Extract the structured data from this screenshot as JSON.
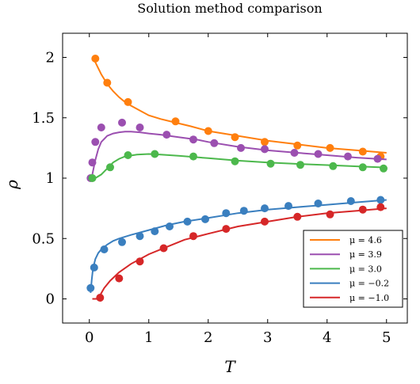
{
  "chart_data": {
    "type": "line",
    "title": "Solution method comparison",
    "xlabel": "T",
    "ylabel": "ρ",
    "xlim": [
      -0.45,
      5.35
    ],
    "ylim": [
      -0.2,
      2.2
    ],
    "xticks": [
      {
        "value": 0,
        "label": "0"
      },
      {
        "value": 1,
        "label": "1"
      },
      {
        "value": 2,
        "label": "2"
      },
      {
        "value": 3,
        "label": "3"
      },
      {
        "value": 4,
        "label": "4"
      },
      {
        "value": 5,
        "label": "5"
      }
    ],
    "yticks": [
      {
        "value": 0,
        "label": "0"
      },
      {
        "value": 0.5,
        "label": "0.5"
      },
      {
        "value": 1,
        "label": "1"
      },
      {
        "value": 1.5,
        "label": "1.5"
      },
      {
        "value": 2,
        "label": "2"
      }
    ],
    "grid": false,
    "legend_position": "bottom-right",
    "series": [
      {
        "name": "μ = 4.6",
        "color": "#ff7f0e",
        "line": {
          "x": [
            0.05,
            0.1,
            0.15,
            0.2,
            0.3,
            0.4,
            0.5,
            0.6,
            0.7,
            0.85,
            1.0,
            1.2,
            1.45,
            1.7,
            2.0,
            2.5,
            3.0,
            3.5,
            4.0,
            4.5,
            5.0
          ],
          "y": [
            2.0,
            1.96,
            1.91,
            1.86,
            1.78,
            1.72,
            1.67,
            1.63,
            1.6,
            1.56,
            1.52,
            1.49,
            1.46,
            1.43,
            1.39,
            1.35,
            1.31,
            1.28,
            1.25,
            1.23,
            1.21
          ]
        },
        "points": {
          "x": [
            0.1,
            0.3,
            0.65,
            1.45,
            2.0,
            2.45,
            2.95,
            3.5,
            4.05,
            4.6,
            4.9
          ],
          "y": [
            1.99,
            1.79,
            1.63,
            1.47,
            1.39,
            1.34,
            1.3,
            1.27,
            1.25,
            1.22,
            1.18
          ]
        }
      },
      {
        "name": "μ = 3.9",
        "color": "#9b4fb0",
        "line": {
          "x": [
            0.05,
            0.1,
            0.15,
            0.2,
            0.3,
            0.4,
            0.5,
            0.6,
            0.7,
            0.85,
            1.0,
            1.2,
            1.5,
            1.8,
            2.0,
            2.5,
            3.0,
            3.5,
            4.0,
            4.5,
            5.0
          ],
          "y": [
            1.03,
            1.15,
            1.24,
            1.3,
            1.35,
            1.37,
            1.38,
            1.385,
            1.385,
            1.38,
            1.37,
            1.36,
            1.34,
            1.32,
            1.3,
            1.26,
            1.23,
            1.21,
            1.19,
            1.17,
            1.155
          ]
        },
        "points": {
          "x": [
            0.02,
            0.05,
            0.1,
            0.2,
            0.55,
            0.85,
            1.3,
            1.75,
            2.1,
            2.55,
            2.95,
            3.45,
            3.85,
            4.35,
            4.85
          ],
          "y": [
            1.0,
            1.13,
            1.3,
            1.42,
            1.46,
            1.42,
            1.36,
            1.32,
            1.29,
            1.25,
            1.24,
            1.21,
            1.2,
            1.18,
            1.16
          ]
        }
      },
      {
        "name": "μ = 3.0",
        "color": "#4cb84c",
        "line": {
          "x": [
            0.05,
            0.1,
            0.2,
            0.3,
            0.4,
            0.5,
            0.6,
            0.8,
            1.0,
            1.2,
            1.5,
            2.0,
            2.5,
            3.0,
            3.5,
            4.0,
            4.5,
            5.0
          ],
          "y": [
            1.0,
            1.0,
            1.03,
            1.08,
            1.13,
            1.16,
            1.18,
            1.195,
            1.2,
            1.195,
            1.185,
            1.165,
            1.145,
            1.13,
            1.118,
            1.108,
            1.098,
            1.088
          ]
        },
        "points": {
          "x": [
            0.05,
            0.35,
            0.65,
            1.1,
            1.75,
            2.45,
            3.05,
            3.55,
            4.1,
            4.6,
            4.95
          ],
          "y": [
            1.0,
            1.09,
            1.19,
            1.2,
            1.18,
            1.14,
            1.12,
            1.11,
            1.1,
            1.09,
            1.08
          ]
        }
      },
      {
        "name": "μ = −0.2",
        "color": "#3a7fbf",
        "line": {
          "x": [
            0.02,
            0.04,
            0.06,
            0.1,
            0.15,
            0.2,
            0.3,
            0.4,
            0.5,
            0.7,
            1.0,
            1.3,
            1.6,
            2.0,
            2.5,
            3.0,
            3.5,
            4.0,
            4.5,
            5.0
          ],
          "y": [
            0.05,
            0.16,
            0.25,
            0.33,
            0.38,
            0.41,
            0.45,
            0.48,
            0.5,
            0.53,
            0.57,
            0.61,
            0.64,
            0.67,
            0.71,
            0.74,
            0.76,
            0.78,
            0.8,
            0.82
          ]
        },
        "points": {
          "x": [
            0.02,
            0.08,
            0.25,
            0.55,
            0.85,
            1.1,
            1.35,
            1.65,
            1.95,
            2.3,
            2.6,
            2.95,
            3.35,
            3.85,
            4.4,
            4.9
          ],
          "y": [
            0.09,
            0.26,
            0.41,
            0.47,
            0.52,
            0.56,
            0.6,
            0.64,
            0.66,
            0.71,
            0.73,
            0.75,
            0.77,
            0.79,
            0.81,
            0.82
          ]
        }
      },
      {
        "name": "μ = −1.0",
        "color": "#d62728",
        "line": {
          "x": [
            0.05,
            0.12,
            0.18,
            0.25,
            0.35,
            0.5,
            0.7,
            1.0,
            1.3,
            1.6,
            2.0,
            2.5,
            3.0,
            3.5,
            4.0,
            4.5,
            5.0
          ],
          "y": [
            0.0,
            0.0,
            0.03,
            0.09,
            0.15,
            0.22,
            0.29,
            0.37,
            0.43,
            0.49,
            0.54,
            0.6,
            0.64,
            0.68,
            0.71,
            0.73,
            0.75
          ]
        },
        "points": {
          "x": [
            0.18,
            0.5,
            0.85,
            1.25,
            1.75,
            2.3,
            2.95,
            3.5,
            4.05,
            4.6,
            4.9
          ],
          "y": [
            0.01,
            0.17,
            0.31,
            0.42,
            0.52,
            0.58,
            0.64,
            0.68,
            0.7,
            0.74,
            0.76
          ]
        }
      }
    ]
  }
}
